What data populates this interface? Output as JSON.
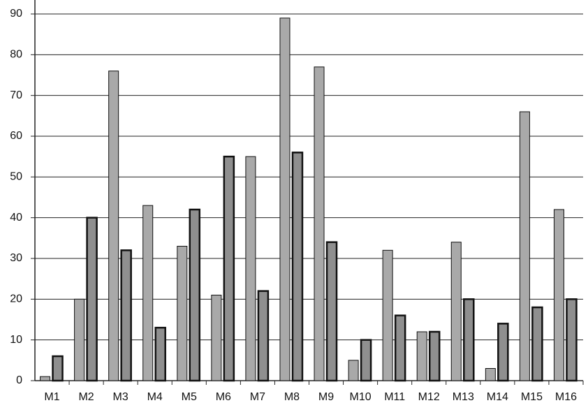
{
  "chart_data": {
    "type": "bar",
    "categories": [
      "M1",
      "M2",
      "M3",
      "M4",
      "M5",
      "M6",
      "M7",
      "M8",
      "M9",
      "M10",
      "M11",
      "M12",
      "M13",
      "M14",
      "M15",
      "M16"
    ],
    "series": [
      {
        "color": "#a9a9a9",
        "values": [
          1,
          20,
          76,
          43,
          33,
          21,
          55,
          89,
          77,
          5,
          32,
          12,
          34,
          3,
          66,
          42
        ]
      },
      {
        "color": "#8f8f8f",
        "values": [
          6,
          40,
          32,
          13,
          42,
          55,
          22,
          56,
          34,
          10,
          16,
          12,
          20,
          14,
          18,
          20
        ]
      }
    ],
    "ylim": [
      0,
      90
    ],
    "yticks": [
      0,
      10,
      20,
      30,
      40,
      50,
      60,
      70,
      80,
      90
    ],
    "grid": true
  }
}
